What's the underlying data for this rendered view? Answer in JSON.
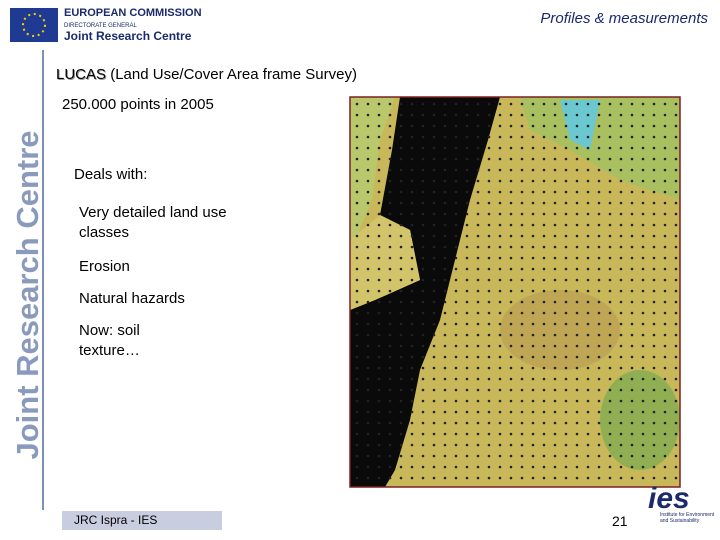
{
  "header": {
    "logo": {
      "org": "EUROPEAN COMMISSION",
      "sub": "DIRECTORATE GENERAL",
      "name": "Joint Research Centre"
    },
    "section": "Profiles & measurements"
  },
  "sidebar": "Joint Research Centre",
  "body": {
    "title_abbr": "LUCAS",
    "title_rest": "(Land Use/Cover Area frame Survey)",
    "subtitle": "250.000 points in 2005",
    "lead": "Deals with:",
    "items": [
      "Very detailed land use classes",
      "Erosion",
      "Natural hazards",
      "Now: soil texture…"
    ]
  },
  "footer": {
    "source": "JRC Ispra - IES",
    "page": "21",
    "logo": {
      "mark": "ies",
      "caption": "Institute for Environment and Sustainability"
    }
  }
}
